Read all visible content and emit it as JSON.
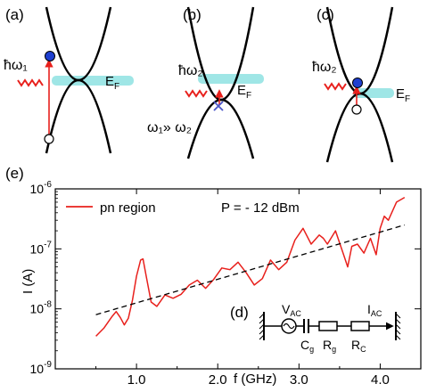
{
  "panels": {
    "a": {
      "label": "(a)",
      "photon": "ħω₁",
      "ef": "E",
      "ef_sub": "F"
    },
    "b": {
      "label": "(b)",
      "photon": "ħω₂",
      "ef": "E",
      "ef_sub": "F",
      "relation": "ω₁» ω₂"
    },
    "c": {
      "label": "(c)",
      "photon": "ħω₂",
      "ef": "E",
      "ef_sub": "F"
    },
    "d": {
      "label": "(d)",
      "circuit": {
        "v": "V",
        "v_sub": "AC",
        "i": "I",
        "i_sub": "AC",
        "cg": "C",
        "cg_sub": "g",
        "rg": "R",
        "rg_sub": "g",
        "rc": "R",
        "rc_sub": "C"
      }
    },
    "e": {
      "label": "(e)"
    }
  },
  "colors": {
    "curve": "#e8201c",
    "fermi": "#9fe6e6",
    "electron": "#1e3fd0",
    "arrow": "#e8201c",
    "cross": "#4a55c8"
  },
  "chart_data": {
    "type": "line",
    "xlabel": "f (GHz)",
    "ylabel": "I (A)",
    "x_ticks": [
      "1.0",
      "2.0",
      "3.0",
      "4.0"
    ],
    "y_ticks": [
      {
        "base": "10",
        "exp": "-9"
      },
      {
        "base": "10",
        "exp": "-8"
      },
      {
        "base": "10",
        "exp": "-7"
      },
      {
        "base": "10",
        "exp": "-6"
      }
    ],
    "xlim": [
      0.0,
      4.5
    ],
    "ylim_log10": [
      -9,
      -6
    ],
    "yscale": "log",
    "legend_position": "top-left",
    "annotation": "P = - 12 dBm",
    "series": [
      {
        "name": "pn region",
        "x": [
          0.5,
          0.6,
          0.7,
          0.75,
          0.8,
          0.85,
          0.9,
          0.95,
          1.0,
          1.05,
          1.08,
          1.12,
          1.18,
          1.25,
          1.35,
          1.45,
          1.55,
          1.65,
          1.75,
          1.85,
          1.95,
          2.05,
          2.15,
          2.25,
          2.35,
          2.45,
          2.55,
          2.65,
          2.75,
          2.85,
          2.95,
          3.05,
          3.15,
          3.25,
          3.3,
          3.35,
          3.45,
          3.55,
          3.6,
          3.65,
          3.72,
          3.8,
          3.88,
          3.95,
          4.0,
          4.05,
          4.1,
          4.2,
          4.3
        ],
        "y": [
          3.5e-09,
          4.8e-09,
          7.5e-09,
          9e-09,
          7.2e-09,
          5.4e-09,
          7e-09,
          1.4e-08,
          3.5e-08,
          6.5e-08,
          6.8e-08,
          3.5e-08,
          1.3e-08,
          1.1e-08,
          1.7e-08,
          1.5e-08,
          1.75e-08,
          2.5e-08,
          3e-08,
          2.2e-08,
          3.1e-08,
          4.8e-08,
          4.5e-08,
          6e-08,
          4e-08,
          2.5e-08,
          3.2e-08,
          6.5e-08,
          4.5e-08,
          6e-08,
          1.4e-07,
          2.2e-07,
          1.2e-07,
          1.7e-07,
          1.5e-07,
          1.2e-07,
          2e-07,
          8e-08,
          5e-08,
          1.1e-07,
          1.2e-07,
          8.5e-08,
          1.5e-07,
          8e-08,
          2.2e-07,
          3.5e-07,
          3e-07,
          6e-07,
          7.2e-07
        ]
      },
      {
        "name": "",
        "x": [
          0.5,
          4.3
        ],
        "y": [
          8e-09,
          2.5e-07
        ]
      }
    ]
  }
}
